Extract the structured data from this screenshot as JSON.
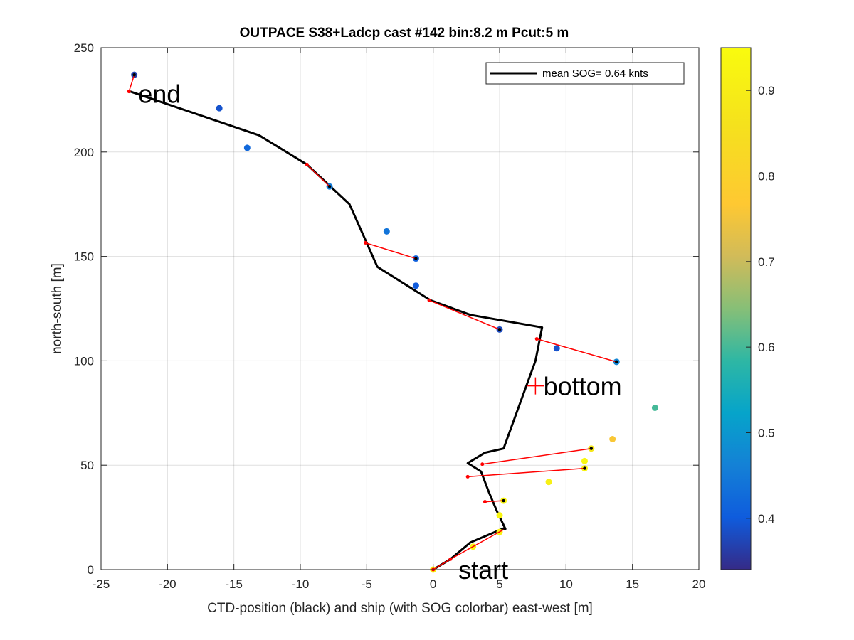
{
  "chart_data": {
    "type": "scatter",
    "title": "OUTPACE S38+Ladcp cast #142 bin:8.2 m  Pcut:5 m",
    "xlabel": "CTD-position (black) and ship (with SOG colorbar) east-west [m]",
    "ylabel": "north-south [m]",
    "xlim": [
      -25,
      20
    ],
    "ylim": [
      0,
      250
    ],
    "xticks": [
      -25,
      -20,
      -15,
      -10,
      -5,
      0,
      5,
      10,
      15,
      20
    ],
    "yticks": [
      0,
      50,
      100,
      150,
      200,
      250
    ],
    "grid": true,
    "legend": {
      "position": "top-right",
      "entries": [
        "mean SOG=  0.64 knts"
      ]
    },
    "colorbar": {
      "colormap": "parula",
      "range": [
        0.34,
        0.95
      ],
      "ticks": [
        0.4,
        0.5,
        0.6,
        0.7,
        0.8,
        0.9
      ]
    },
    "series": [
      {
        "name": "mean SOG=  0.64 knts",
        "role": "ctd_track",
        "color": "#000000",
        "x": [
          0,
          1.3,
          2.8,
          5.4,
          4.8,
          4.2,
          3.6,
          2.6,
          3.9,
          5.3,
          7.7,
          8.2,
          2.8,
          -0.2,
          -4.2,
          -6.3,
          -9.5,
          -13.1,
          -22.8
        ],
        "y": [
          0,
          5,
          13,
          20,
          28,
          37,
          47,
          51,
          56,
          58,
          100,
          116,
          122,
          129,
          145,
          175,
          194,
          208,
          229
        ]
      },
      {
        "name": "",
        "role": "ship_positions",
        "colored_by": "SOG",
        "points": [
          {
            "x": 0.0,
            "y": 0,
            "sog": 0.92
          },
          {
            "x": 3.0,
            "y": 11,
            "sog": 0.93
          },
          {
            "x": 5.0,
            "y": 18,
            "sog": 0.92
          },
          {
            "x": 5.0,
            "y": 26,
            "sog": 0.93
          },
          {
            "x": 5.3,
            "y": 33,
            "sog": 0.93
          },
          {
            "x": 8.7,
            "y": 42,
            "sog": 0.91
          },
          {
            "x": 11.4,
            "y": 52,
            "sog": 0.94
          },
          {
            "x": 11.4,
            "y": 48.5,
            "sog": 0.92
          },
          {
            "x": 13.5,
            "y": 62.5,
            "sog": 0.76
          },
          {
            "x": 11.9,
            "y": 58,
            "sog": 0.88
          },
          {
            "x": 16.7,
            "y": 77.5,
            "sog": 0.6
          },
          {
            "x": 13.8,
            "y": 99.5,
            "sog": 0.47
          },
          {
            "x": 9.3,
            "y": 106,
            "sog": 0.39
          },
          {
            "x": 5.0,
            "y": 115,
            "sog": 0.38
          },
          {
            "x": -1.3,
            "y": 136,
            "sog": 0.4
          },
          {
            "x": -1.3,
            "y": 149,
            "sog": 0.41
          },
          {
            "x": -3.5,
            "y": 162,
            "sog": 0.44
          },
          {
            "x": -7.8,
            "y": 183.5,
            "sog": 0.45
          },
          {
            "x": -14.0,
            "y": 202,
            "sog": 0.42
          },
          {
            "x": -16.1,
            "y": 221,
            "sog": 0.39
          },
          {
            "x": -22.5,
            "y": 237,
            "sog": 0.37
          }
        ]
      },
      {
        "name": "",
        "role": "ctd_ship_links",
        "color": "#ff0000",
        "segments": [
          [
            [
              0,
              0
            ],
            [
              1.3,
              5
            ]
          ],
          [
            [
              1.3,
              5
            ],
            [
              5.4,
              19.5
            ]
          ],
          [
            [
              3.9,
              32.5
            ],
            [
              5.3,
              33
            ]
          ],
          [
            [
              2.6,
              44.5
            ],
            [
              11.4,
              48.5
            ]
          ],
          [
            [
              3.7,
              50.5
            ],
            [
              11.9,
              58
            ]
          ],
          [
            [
              7.8,
              110.5
            ],
            [
              13.8,
              99.5
            ]
          ],
          [
            [
              -0.3,
              129
            ],
            [
              5.0,
              115
            ]
          ],
          [
            [
              -5.1,
              156.5
            ],
            [
              -1.3,
              149
            ]
          ],
          [
            [
              -9.5,
              194
            ],
            [
              -7.8,
              183.5
            ]
          ],
          [
            [
              -22.9,
              229
            ],
            [
              -22.5,
              237
            ]
          ]
        ]
      }
    ],
    "annotations": [
      {
        "text": "start",
        "x": 1.9,
        "y": 0
      },
      {
        "text": "bottom",
        "x": 8.3,
        "y": 88
      },
      {
        "text": "end",
        "x": -22.2,
        "y": 228
      }
    ],
    "bottom_marker": {
      "x": 7.7,
      "y": 88
    }
  }
}
